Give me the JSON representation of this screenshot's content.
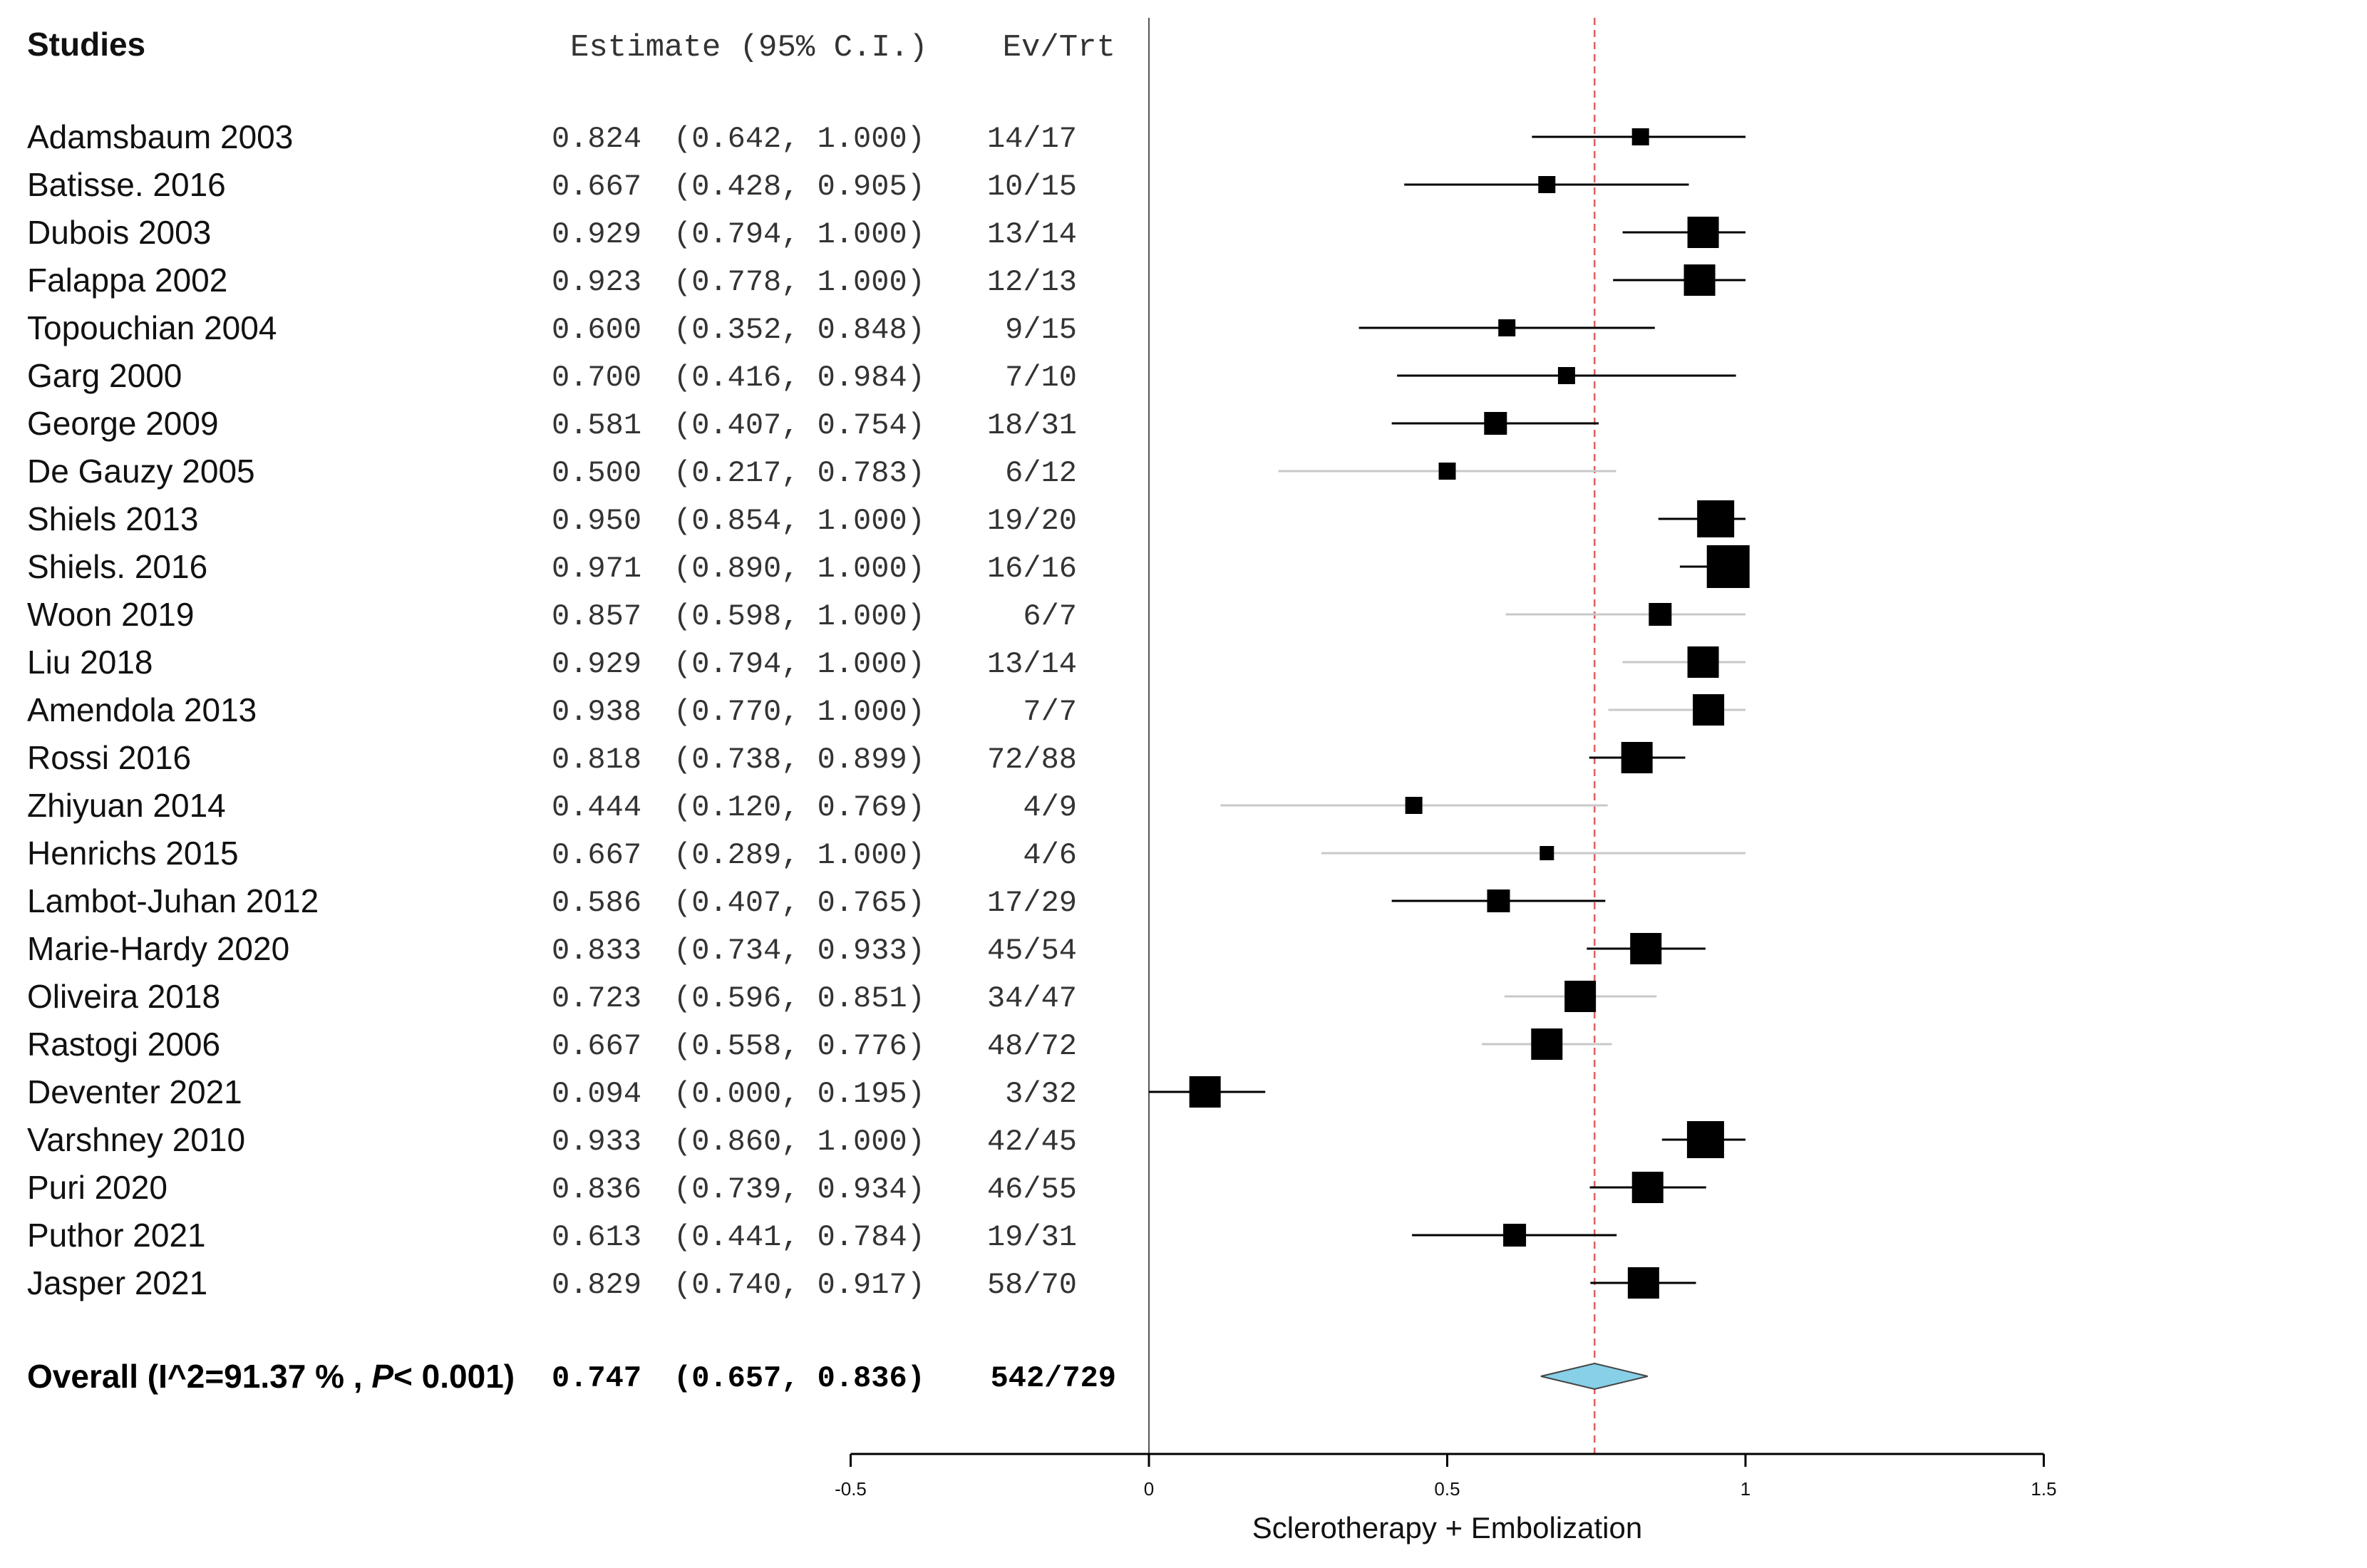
{
  "chart_data": {
    "type": "forest",
    "headers": {
      "studies": "Studies",
      "estimate": "Estimate (95% C.I.)",
      "ev_trt": "Ev/Trt"
    },
    "xlabel": "Sclerotherapy + Embolization",
    "xlim": [
      -0.5,
      1.5
    ],
    "xticks": [
      -0.5,
      0,
      0.5,
      1,
      1.5
    ],
    "xtick_labels": [
      "-0.5",
      "0",
      "0.5",
      "1",
      "1.5"
    ],
    "reference_line": 0.747,
    "studies": [
      {
        "name": "Adamsbaum 2003",
        "est": 0.824,
        "lo": 0.642,
        "hi": 1.0,
        "est_text": "0.824",
        "ci_text": "(0.642, 1.000)",
        "evtrt": "14/17",
        "weight": 1,
        "gray": false
      },
      {
        "name": "Batisse. 2016",
        "est": 0.667,
        "lo": 0.428,
        "hi": 0.905,
        "est_text": "0.667",
        "ci_text": "(0.428, 0.905)",
        "evtrt": "10/15",
        "weight": 1,
        "gray": false
      },
      {
        "name": "Dubois 2003",
        "est": 0.929,
        "lo": 0.794,
        "hi": 1.0,
        "est_text": "0.929",
        "ci_text": "(0.794, 1.000)",
        "evtrt": "13/14",
        "weight": 3,
        "gray": false
      },
      {
        "name": "Falappa 2002",
        "est": 0.923,
        "lo": 0.778,
        "hi": 1.0,
        "est_text": "0.923",
        "ci_text": "(0.778, 1.000)",
        "evtrt": "12/13",
        "weight": 3,
        "gray": false
      },
      {
        "name": "Topouchian 2004",
        "est": 0.6,
        "lo": 0.352,
        "hi": 0.848,
        "est_text": "0.600",
        "ci_text": "(0.352, 0.848)",
        "evtrt": "9/15",
        "weight": 1,
        "gray": false
      },
      {
        "name": "Garg 2000",
        "est": 0.7,
        "lo": 0.416,
        "hi": 0.984,
        "est_text": "0.700",
        "ci_text": "(0.416, 0.984)",
        "evtrt": "7/10",
        "weight": 1,
        "gray": false
      },
      {
        "name": "George 2009",
        "est": 0.581,
        "lo": 0.407,
        "hi": 0.754,
        "est_text": "0.581",
        "ci_text": "(0.407, 0.754)",
        "evtrt": "18/31",
        "weight": 2,
        "gray": false
      },
      {
        "name": "De Gauzy 2005",
        "est": 0.5,
        "lo": 0.217,
        "hi": 0.783,
        "est_text": "0.500",
        "ci_text": "(0.217, 0.783)",
        "evtrt": "6/12",
        "weight": 1,
        "gray": true
      },
      {
        "name": "Shiels 2013",
        "est": 0.95,
        "lo": 0.854,
        "hi": 1.0,
        "est_text": "0.950",
        "ci_text": "(0.854, 1.000)",
        "evtrt": "19/20",
        "weight": 4,
        "gray": false
      },
      {
        "name": "Shiels. 2016",
        "est": 0.971,
        "lo": 0.89,
        "hi": 1.0,
        "est_text": "0.971",
        "ci_text": "(0.890, 1.000)",
        "evtrt": "16/16",
        "weight": 5,
        "gray": false
      },
      {
        "name": "Woon 2019",
        "est": 0.857,
        "lo": 0.598,
        "hi": 1.0,
        "est_text": "0.857",
        "ci_text": "(0.598, 1.000)",
        "evtrt": "6/7",
        "weight": 2,
        "gray": true
      },
      {
        "name": " Liu 2018",
        "est": 0.929,
        "lo": 0.794,
        "hi": 1.0,
        "est_text": "0.929",
        "ci_text": "(0.794, 1.000)",
        "evtrt": "13/14",
        "weight": 3,
        "gray": true
      },
      {
        "name": "Amendola 2013",
        "est": 0.938,
        "lo": 0.77,
        "hi": 1.0,
        "est_text": "0.938",
        "ci_text": "(0.770, 1.000)",
        "evtrt": "7/7",
        "weight": 3,
        "gray": true
      },
      {
        "name": "Rossi 2016",
        "est": 0.818,
        "lo": 0.738,
        "hi": 0.899,
        "est_text": "0.818",
        "ci_text": "(0.738, 0.899)",
        "evtrt": "72/88",
        "weight": 3,
        "gray": false
      },
      {
        "name": "Zhiyuan 2014",
        "est": 0.444,
        "lo": 0.12,
        "hi": 0.769,
        "est_text": "0.444",
        "ci_text": "(0.120, 0.769)",
        "evtrt": "4/9",
        "weight": 1,
        "gray": true
      },
      {
        "name": "Henrichs 2015",
        "est": 0.667,
        "lo": 0.289,
        "hi": 1.0,
        "est_text": "0.667",
        "ci_text": "(0.289, 1.000)",
        "evtrt": "4/6",
        "weight": 0,
        "gray": true
      },
      {
        "name": "Lambot-Juhan 2012",
        "est": 0.586,
        "lo": 0.407,
        "hi": 0.765,
        "est_text": "0.586",
        "ci_text": "(0.407, 0.765)",
        "evtrt": "17/29",
        "weight": 2,
        "gray": false
      },
      {
        "name": "Marie-Hardy 2020",
        "est": 0.833,
        "lo": 0.734,
        "hi": 0.933,
        "est_text": "0.833",
        "ci_text": "(0.734, 0.933)",
        "evtrt": "45/54",
        "weight": 3,
        "gray": false
      },
      {
        "name": "Oliveira 2018",
        "est": 0.723,
        "lo": 0.596,
        "hi": 0.851,
        "est_text": "0.723",
        "ci_text": "(0.596, 0.851)",
        "evtrt": "34/47",
        "weight": 3,
        "gray": true
      },
      {
        "name": "Rastogi 2006",
        "est": 0.667,
        "lo": 0.558,
        "hi": 0.776,
        "est_text": "0.667",
        "ci_text": "(0.558, 0.776)",
        "evtrt": "48/72",
        "weight": 3,
        "gray": true
      },
      {
        "name": "Deventer 2021",
        "est": 0.094,
        "lo": 0.0,
        "hi": 0.195,
        "est_text": "0.094",
        "ci_text": "(0.000, 0.195)",
        "evtrt": "3/32",
        "weight": 3,
        "gray": false
      },
      {
        "name": "Varshney 2010",
        "est": 0.933,
        "lo": 0.86,
        "hi": 1.0,
        "est_text": "0.933",
        "ci_text": "(0.860, 1.000)",
        "evtrt": "42/45",
        "weight": 4,
        "gray": false
      },
      {
        "name": "Puri 2020",
        "est": 0.836,
        "lo": 0.739,
        "hi": 0.934,
        "est_text": "0.836",
        "ci_text": "(0.739, 0.934)",
        "evtrt": "46/55",
        "weight": 3,
        "gray": false
      },
      {
        "name": "Puthor 2021",
        "est": 0.613,
        "lo": 0.441,
        "hi": 0.784,
        "est_text": "0.613",
        "ci_text": "(0.441, 0.784)",
        "evtrt": "19/31",
        "weight": 2,
        "gray": false
      },
      {
        "name": "Jasper 2021",
        "est": 0.829,
        "lo": 0.74,
        "hi": 0.917,
        "est_text": "0.829",
        "ci_text": "(0.740, 0.917)",
        "evtrt": "58/70",
        "weight": 3,
        "gray": false
      }
    ],
    "overall": {
      "label_prefix": "Overall (I^2=91.37 % , ",
      "label_p": "P",
      "label_suffix": "< 0.001)",
      "est": 0.747,
      "lo": 0.657,
      "hi": 0.836,
      "est_text": "0.747",
      "ci_text": "(0.657, 0.836)",
      "evtrt": "542/729",
      "color": "#87d0e8"
    },
    "colors": {
      "ci_black": "#000000",
      "ci_gray": "#c8c8c8",
      "ref_line": "#e06060"
    }
  }
}
